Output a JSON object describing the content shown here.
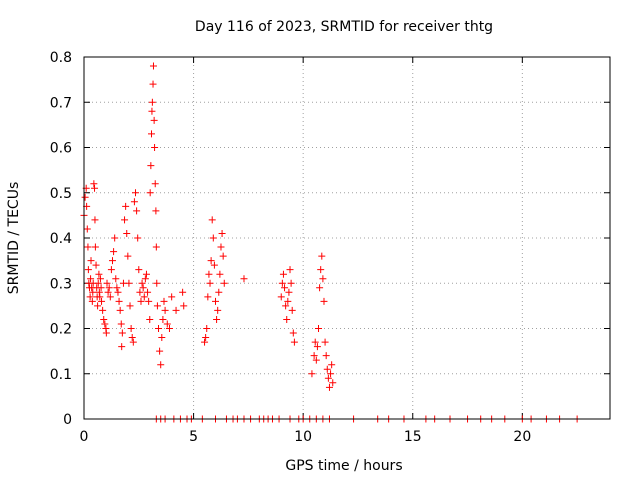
{
  "chart_data": {
    "type": "scatter",
    "title": "Day 116 of 2023, SRMTID for receiver thtg",
    "xlabel": "GPS time / hours",
    "ylabel": "SRMTID / TECUs",
    "xlim": [
      0,
      24
    ],
    "ylim": [
      0,
      0.8
    ],
    "xticks": [
      0,
      5,
      10,
      15,
      20
    ],
    "yticks": [
      0,
      0.1,
      0.2,
      0.3,
      0.4,
      0.5,
      0.6,
      0.7,
      0.8
    ],
    "xtick_labels": [
      "0",
      "5",
      "10",
      "15",
      "20"
    ],
    "ytick_labels": [
      "0",
      "0.1",
      "0.2",
      "0.3",
      "0.4",
      "0.5",
      "0.6",
      "0.7",
      "0.8"
    ],
    "grid": true,
    "marker": "plus",
    "color": "#ff0000",
    "series": [
      {
        "name": "SRMTID",
        "points": [
          [
            0.0,
            0.45
          ],
          [
            0.05,
            0.49
          ],
          [
            0.1,
            0.51
          ],
          [
            0.12,
            0.47
          ],
          [
            0.15,
            0.42
          ],
          [
            0.18,
            0.38
          ],
          [
            0.2,
            0.33
          ],
          [
            0.22,
            0.3
          ],
          [
            0.25,
            0.29
          ],
          [
            0.28,
            0.27
          ],
          [
            0.3,
            0.31
          ],
          [
            0.32,
            0.35
          ],
          [
            0.35,
            0.29
          ],
          [
            0.38,
            0.26
          ],
          [
            0.4,
            0.28
          ],
          [
            0.42,
            0.3
          ],
          [
            0.45,
            0.52
          ],
          [
            0.48,
            0.51
          ],
          [
            0.5,
            0.44
          ],
          [
            0.52,
            0.38
          ],
          [
            0.55,
            0.34
          ],
          [
            0.58,
            0.29
          ],
          [
            0.6,
            0.27
          ],
          [
            0.62,
            0.25
          ],
          [
            0.65,
            0.3
          ],
          [
            0.68,
            0.32
          ],
          [
            0.7,
            0.28
          ],
          [
            0.72,
            0.27
          ],
          [
            0.75,
            0.31
          ],
          [
            0.78,
            0.29
          ],
          [
            0.8,
            0.26
          ],
          [
            0.85,
            0.24
          ],
          [
            0.9,
            0.22
          ],
          [
            0.95,
            0.21
          ],
          [
            1.0,
            0.2
          ],
          [
            1.02,
            0.19
          ],
          [
            1.05,
            0.3
          ],
          [
            1.1,
            0.28
          ],
          [
            1.15,
            0.29
          ],
          [
            1.2,
            0.27
          ],
          [
            1.25,
            0.33
          ],
          [
            1.3,
            0.35
          ],
          [
            1.35,
            0.37
          ],
          [
            1.4,
            0.4
          ],
          [
            1.45,
            0.31
          ],
          [
            1.5,
            0.29
          ],
          [
            1.55,
            0.28
          ],
          [
            1.6,
            0.26
          ],
          [
            1.65,
            0.24
          ],
          [
            1.7,
            0.21
          ],
          [
            1.72,
            0.16
          ],
          [
            1.75,
            0.19
          ],
          [
            1.8,
            0.3
          ],
          [
            1.85,
            0.44
          ],
          [
            1.9,
            0.47
          ],
          [
            1.95,
            0.41
          ],
          [
            2.0,
            0.36
          ],
          [
            2.05,
            0.3
          ],
          [
            2.1,
            0.25
          ],
          [
            2.15,
            0.2
          ],
          [
            2.2,
            0.18
          ],
          [
            2.25,
            0.17
          ],
          [
            2.3,
            0.48
          ],
          [
            2.35,
            0.5
          ],
          [
            2.4,
            0.46
          ],
          [
            2.45,
            0.4
          ],
          [
            2.5,
            0.33
          ],
          [
            2.55,
            0.28
          ],
          [
            2.6,
            0.26
          ],
          [
            2.65,
            0.3
          ],
          [
            2.7,
            0.29
          ],
          [
            2.75,
            0.27
          ],
          [
            2.8,
            0.31
          ],
          [
            2.85,
            0.32
          ],
          [
            2.9,
            0.28
          ],
          [
            2.95,
            0.26
          ],
          [
            3.0,
            0.22
          ],
          [
            3.02,
            0.5
          ],
          [
            3.05,
            0.56
          ],
          [
            3.08,
            0.63
          ],
          [
            3.1,
            0.68
          ],
          [
            3.12,
            0.7
          ],
          [
            3.15,
            0.74
          ],
          [
            3.17,
            0.78
          ],
          [
            3.2,
            0.66
          ],
          [
            3.22,
            0.6
          ],
          [
            3.25,
            0.52
          ],
          [
            3.28,
            0.46
          ],
          [
            3.3,
            0.38
          ],
          [
            3.32,
            0.3
          ],
          [
            3.35,
            0.25
          ],
          [
            3.4,
            0.2
          ],
          [
            3.45,
            0.15
          ],
          [
            3.5,
            0.12
          ],
          [
            3.55,
            0.18
          ],
          [
            3.6,
            0.22
          ],
          [
            3.65,
            0.26
          ],
          [
            3.7,
            0.24
          ],
          [
            3.8,
            0.21
          ],
          [
            3.9,
            0.2
          ],
          [
            4.0,
            0.27
          ],
          [
            4.2,
            0.24
          ],
          [
            4.5,
            0.28
          ],
          [
            4.55,
            0.25
          ],
          [
            5.5,
            0.17
          ],
          [
            5.55,
            0.18
          ],
          [
            5.6,
            0.2
          ],
          [
            5.65,
            0.27
          ],
          [
            5.7,
            0.32
          ],
          [
            5.75,
            0.3
          ],
          [
            5.8,
            0.35
          ],
          [
            5.85,
            0.44
          ],
          [
            5.9,
            0.4
          ],
          [
            5.95,
            0.34
          ],
          [
            6.0,
            0.26
          ],
          [
            6.05,
            0.22
          ],
          [
            6.1,
            0.24
          ],
          [
            6.15,
            0.28
          ],
          [
            6.2,
            0.32
          ],
          [
            6.25,
            0.38
          ],
          [
            6.3,
            0.41
          ],
          [
            6.35,
            0.36
          ],
          [
            6.4,
            0.3
          ],
          [
            7.3,
            0.31
          ],
          [
            9.0,
            0.27
          ],
          [
            9.05,
            0.3
          ],
          [
            9.1,
            0.32
          ],
          [
            9.15,
            0.29
          ],
          [
            9.2,
            0.25
          ],
          [
            9.25,
            0.22
          ],
          [
            9.3,
            0.26
          ],
          [
            9.35,
            0.28
          ],
          [
            9.4,
            0.33
          ],
          [
            9.45,
            0.3
          ],
          [
            9.5,
            0.24
          ],
          [
            9.55,
            0.19
          ],
          [
            9.6,
            0.17
          ],
          [
            10.4,
            0.1
          ],
          [
            10.5,
            0.14
          ],
          [
            10.55,
            0.17
          ],
          [
            10.6,
            0.13
          ],
          [
            10.65,
            0.16
          ],
          [
            10.7,
            0.2
          ],
          [
            10.75,
            0.29
          ],
          [
            10.8,
            0.33
          ],
          [
            10.85,
            0.36
          ],
          [
            10.9,
            0.31
          ],
          [
            10.95,
            0.26
          ],
          [
            11.0,
            0.17
          ],
          [
            11.05,
            0.14
          ],
          [
            11.1,
            0.11
          ],
          [
            11.15,
            0.09
          ],
          [
            11.2,
            0.07
          ],
          [
            11.25,
            0.1
          ],
          [
            11.3,
            0.12
          ],
          [
            11.35,
            0.08
          ],
          [
            3.3,
            0.0
          ],
          [
            3.5,
            0.0
          ],
          [
            3.7,
            0.0
          ],
          [
            4.1,
            0.0
          ],
          [
            4.4,
            0.0
          ],
          [
            4.7,
            0.0
          ],
          [
            4.9,
            0.0
          ],
          [
            5.4,
            0.0
          ],
          [
            6.0,
            0.0
          ],
          [
            6.5,
            0.0
          ],
          [
            6.8,
            0.0
          ],
          [
            7.0,
            0.0
          ],
          [
            7.3,
            0.0
          ],
          [
            7.6,
            0.0
          ],
          [
            8.0,
            0.0
          ],
          [
            8.2,
            0.0
          ],
          [
            8.4,
            0.0
          ],
          [
            8.6,
            0.0
          ],
          [
            8.9,
            0.0
          ],
          [
            9.4,
            0.0
          ],
          [
            9.8,
            0.0
          ],
          [
            10.0,
            0.0
          ],
          [
            10.3,
            0.0
          ],
          [
            10.6,
            0.0
          ],
          [
            10.9,
            0.0
          ],
          [
            11.2,
            0.0
          ],
          [
            12.3,
            0.0
          ],
          [
            13.4,
            0.0
          ],
          [
            13.9,
            0.0
          ],
          [
            14.6,
            0.0
          ],
          [
            15.6,
            0.0
          ],
          [
            16.0,
            0.0
          ],
          [
            16.7,
            0.0
          ],
          [
            17.5,
            0.0
          ],
          [
            18.1,
            0.0
          ],
          [
            18.6,
            0.0
          ],
          [
            19.2,
            0.0
          ],
          [
            20.0,
            0.0
          ],
          [
            20.4,
            0.0
          ],
          [
            21.1,
            0.0
          ],
          [
            21.7,
            0.0
          ],
          [
            22.5,
            0.0
          ]
        ]
      }
    ]
  }
}
